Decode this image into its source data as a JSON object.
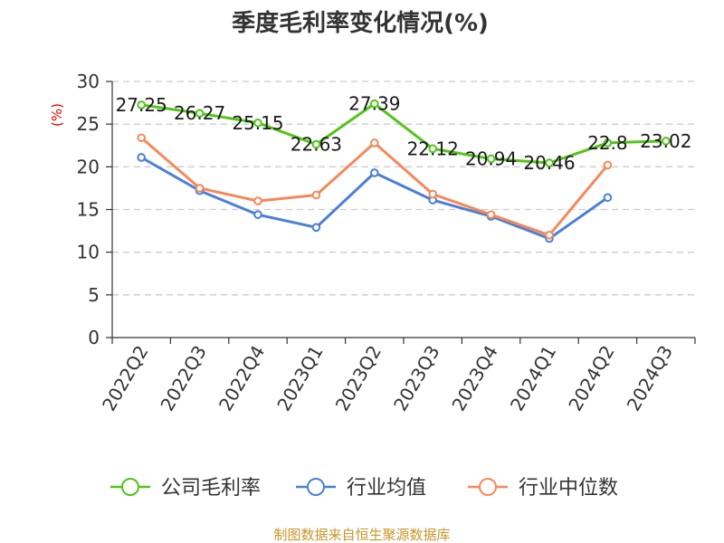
{
  "colors": {
    "company": "#52c41a",
    "industry_avg": "#4a7fd8",
    "industry_median": "#f5885a",
    "grid": "#cccccc",
    "axis": "#333333",
    "source": "#c8962a",
    "ylabel": "#e60000"
  },
  "chart_data": {
    "type": "line",
    "title": "季度毛利率变化情况(%)",
    "ylabel": "(%)",
    "xlabel": "",
    "ylim": [
      0,
      30
    ],
    "yticks": [
      0,
      5,
      10,
      15,
      20,
      25,
      30
    ],
    "grid": true,
    "legend_position": "bottom",
    "categories": [
      "2022Q2",
      "2022Q3",
      "2022Q4",
      "2023Q1",
      "2023Q2",
      "2023Q3",
      "2023Q4",
      "2024Q1",
      "2024Q2",
      "2024Q3"
    ],
    "series": [
      {
        "name": "公司毛利率",
        "color_key": "company",
        "values": [
          27.25,
          26.27,
          25.15,
          22.63,
          27.39,
          22.12,
          20.94,
          20.46,
          22.8,
          23.02
        ],
        "labels": [
          "27.25",
          "26.27",
          "25.15",
          "22.63",
          "27.39",
          "22.12",
          "20.94",
          "20.46",
          "22.8",
          "23.02"
        ]
      },
      {
        "name": "行业均值",
        "color_key": "industry_avg",
        "values": [
          21.1,
          17.2,
          14.4,
          12.9,
          19.3,
          16.1,
          14.2,
          11.6,
          16.4,
          null
        ]
      },
      {
        "name": "行业中位数",
        "color_key": "industry_median",
        "values": [
          23.4,
          17.5,
          16.0,
          16.7,
          22.8,
          16.8,
          14.4,
          12.0,
          20.2,
          null
        ]
      }
    ]
  },
  "source_text": "制图数据来自恒生聚源数据库"
}
